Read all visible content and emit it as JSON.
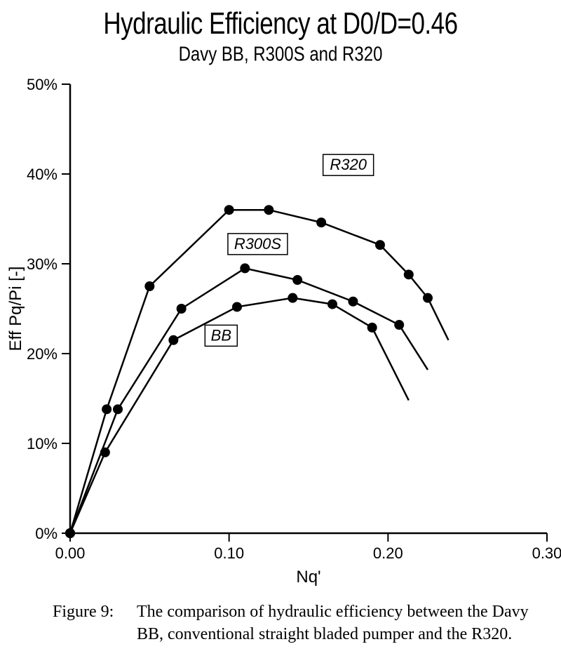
{
  "title": "Hydraulic Efficiency at D0/D=0.46",
  "subtitle": "Davy BB, R300S and R320",
  "caption_label": "Figure 9:",
  "caption_text": "The comparison of hydraulic efficiency  between the Davy BB, conventional straight bladed pumper and the R320.",
  "chart": {
    "type": "line",
    "background_color": "#ffffff",
    "axis_color": "#000000",
    "tick_color": "#000000",
    "line_color": "#000000",
    "marker_color": "#000000",
    "line_width": 2.5,
    "marker_radius": 7,
    "xlim": [
      0.0,
      0.3
    ],
    "ylim": [
      0,
      50
    ],
    "x_ticks": [
      0.0,
      0.1,
      0.2,
      0.3
    ],
    "x_tick_labels": [
      "0.00",
      "0.10",
      "0.20",
      "0.30"
    ],
    "y_ticks": [
      0,
      10,
      20,
      30,
      40,
      50
    ],
    "y_tick_labels": [
      "0%",
      "10%",
      "20%",
      "30%",
      "40%",
      "50%"
    ],
    "x_axis_label": "Nq'",
    "y_axis_label": "Eff     Pq/Pi [-]",
    "y_label_fontsize": 24,
    "x_label_fontsize": 24,
    "tick_fontsize": 22,
    "label_font_style": "italic",
    "label_box_stroke": "#000000",
    "label_box_fill": "#ffffff",
    "series": [
      {
        "name": "R320",
        "label": "R320",
        "label_box": {
          "x": 0.175,
          "y": 41
        },
        "points": [
          {
            "x": 0.0,
            "y": 0.0
          },
          {
            "x": 0.023,
            "y": 13.8
          },
          {
            "x": 0.05,
            "y": 27.5
          },
          {
            "x": 0.1,
            "y": 36.0
          },
          {
            "x": 0.125,
            "y": 36.0
          },
          {
            "x": 0.158,
            "y": 34.6
          },
          {
            "x": 0.195,
            "y": 32.1
          },
          {
            "x": 0.213,
            "y": 28.8
          },
          {
            "x": 0.225,
            "y": 26.2
          }
        ],
        "tail": {
          "x": 0.238,
          "y": 21.5
        }
      },
      {
        "name": "R300S",
        "label": "R300S",
        "label_box": {
          "x": 0.118,
          "y": 32.2
        },
        "points": [
          {
            "x": 0.0,
            "y": 0.0
          },
          {
            "x": 0.03,
            "y": 13.8
          },
          {
            "x": 0.07,
            "y": 25.0
          },
          {
            "x": 0.11,
            "y": 29.5
          },
          {
            "x": 0.143,
            "y": 28.2
          },
          {
            "x": 0.178,
            "y": 25.8
          },
          {
            "x": 0.207,
            "y": 23.2
          }
        ],
        "tail": {
          "x": 0.225,
          "y": 18.2
        }
      },
      {
        "name": "BB",
        "label": "BB",
        "label_box": {
          "x": 0.095,
          "y": 22.0
        },
        "points": [
          {
            "x": 0.0,
            "y": 0.0
          },
          {
            "x": 0.022,
            "y": 9.0
          },
          {
            "x": 0.065,
            "y": 21.5
          },
          {
            "x": 0.105,
            "y": 25.2
          },
          {
            "x": 0.14,
            "y": 26.2
          },
          {
            "x": 0.165,
            "y": 25.5
          },
          {
            "x": 0.19,
            "y": 22.9
          }
        ],
        "tail": {
          "x": 0.213,
          "y": 14.8
        }
      }
    ]
  }
}
